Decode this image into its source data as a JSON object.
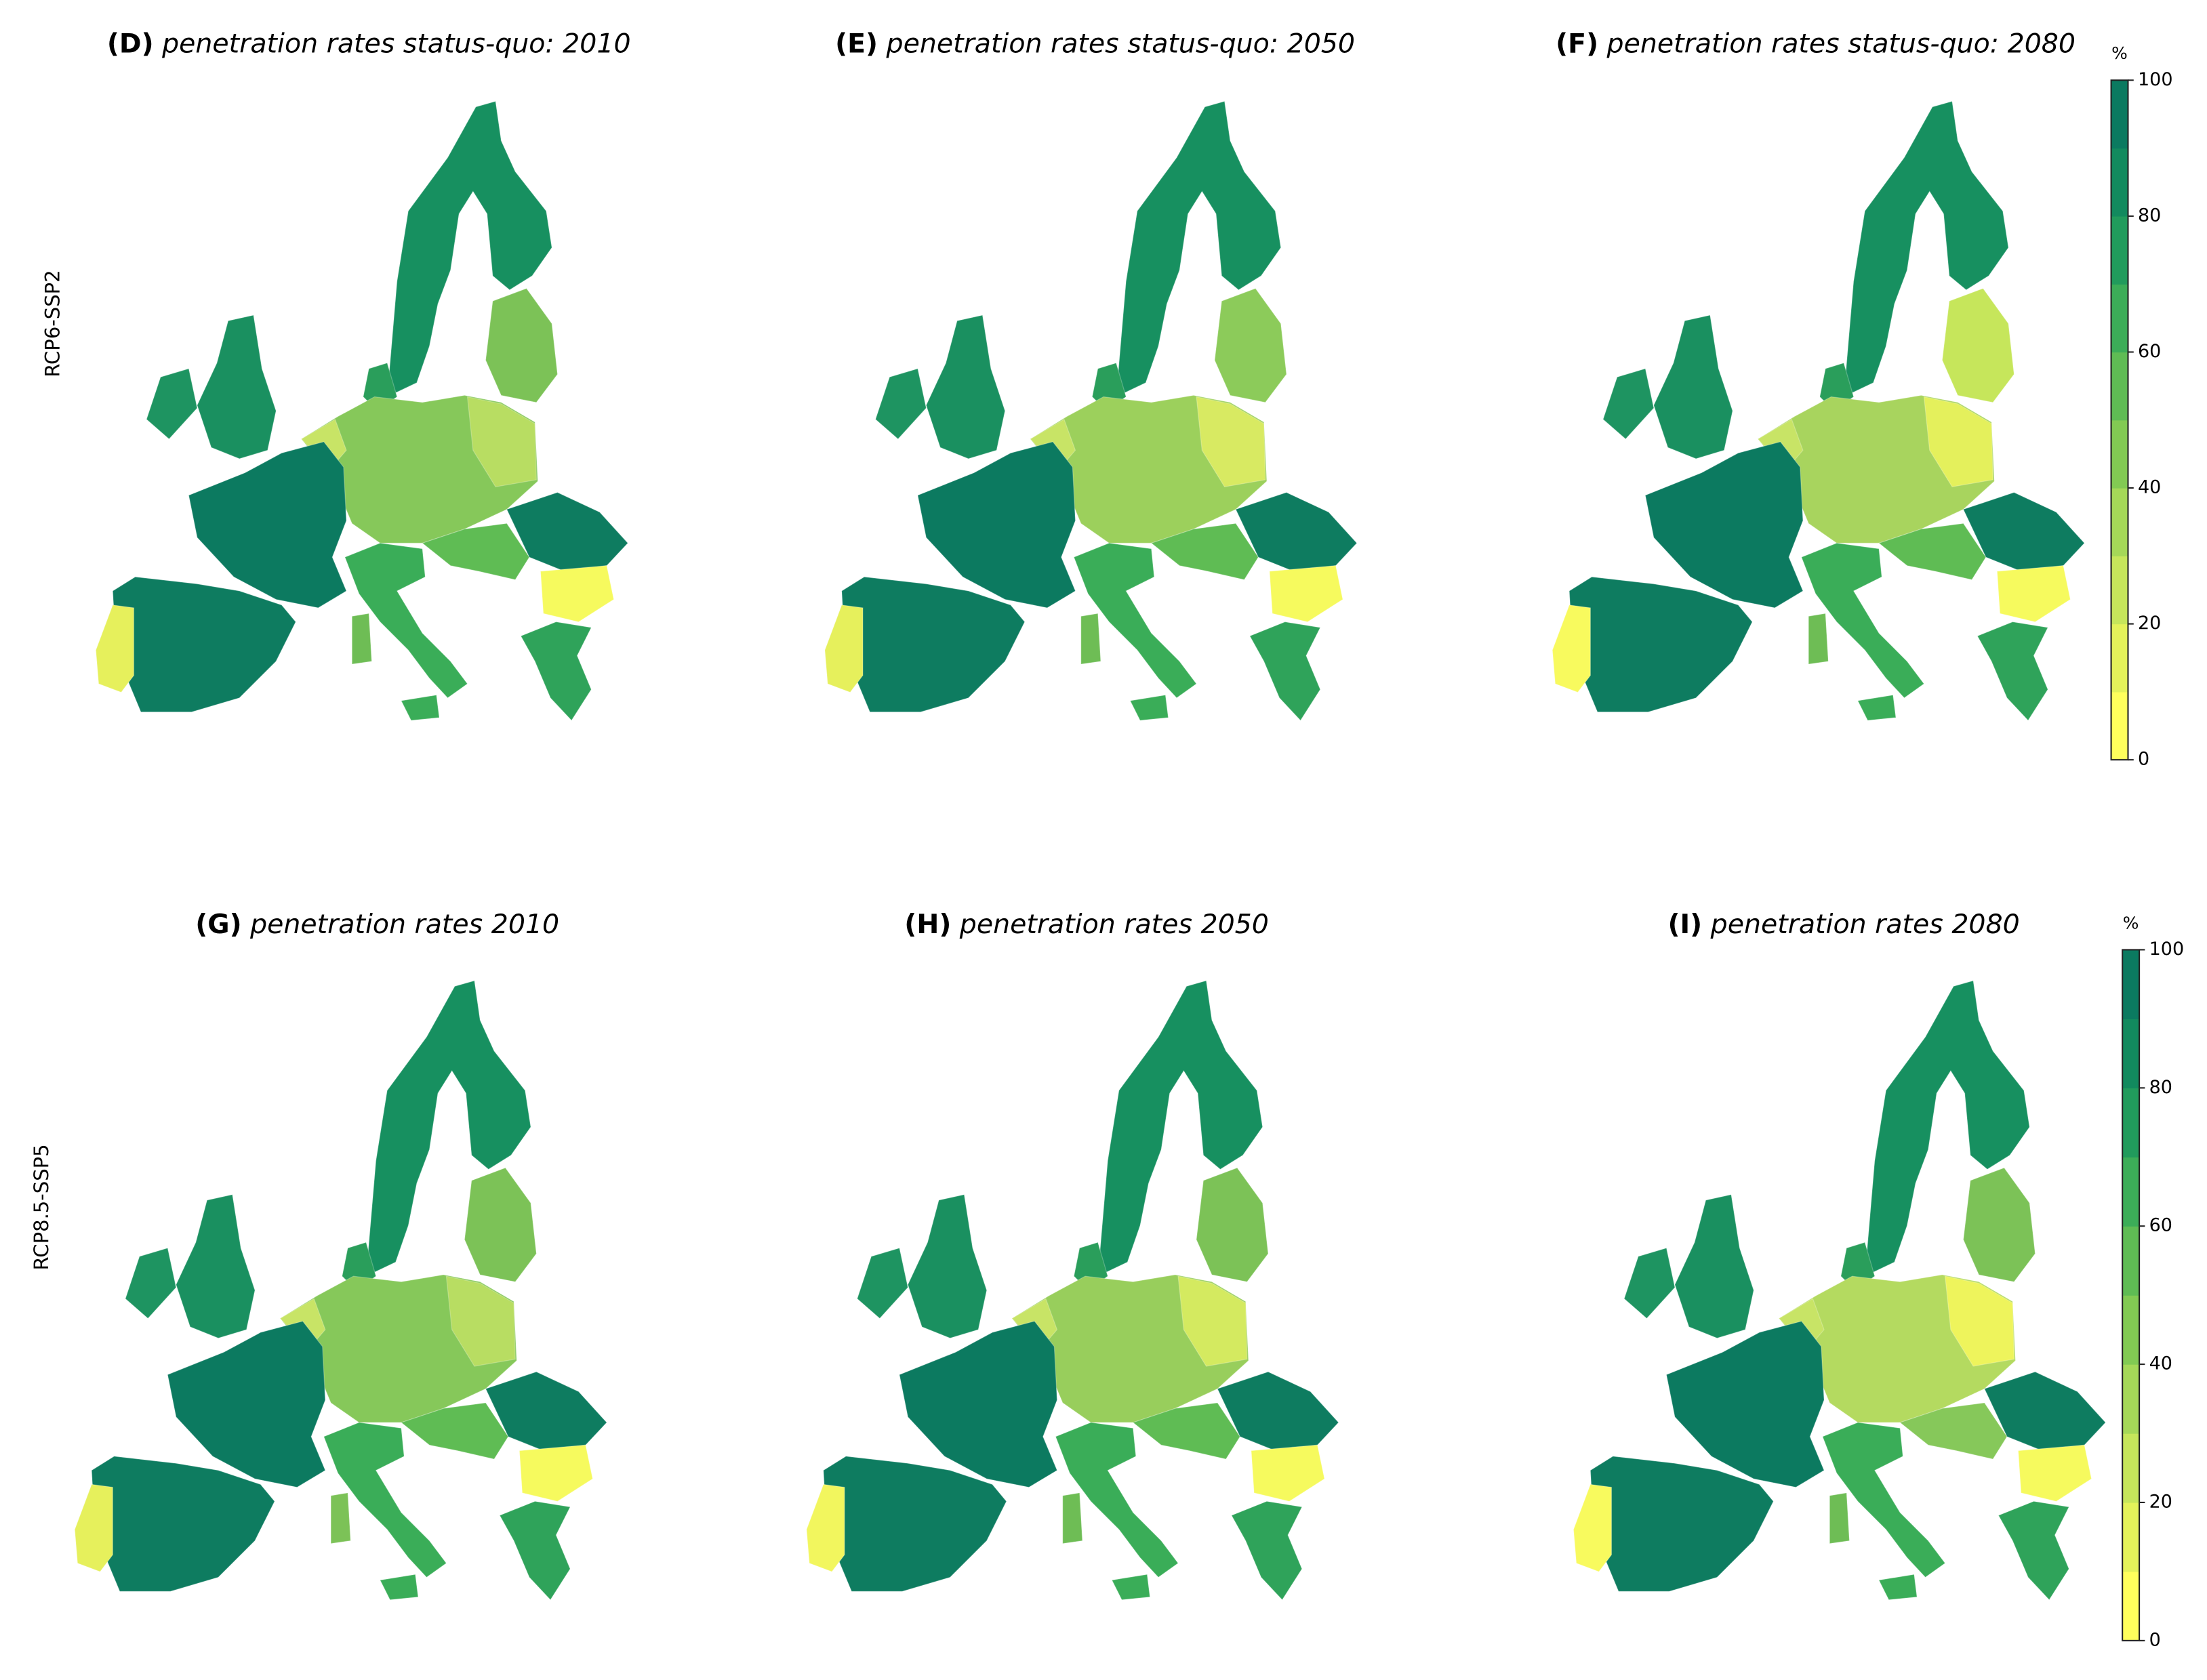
{
  "row_labels": [
    "RCP6-SSP2",
    "RCP8.5-SSP5"
  ],
  "panels": [
    {
      "label": "(D)",
      "title": "penetration rates status-quo: 2010"
    },
    {
      "label": "(E)",
      "title": "penetration rates status-quo: 2050"
    },
    {
      "label": "(F)",
      "title": "penetration rates status-quo: 2080"
    },
    {
      "label": "(G)",
      "title": "penetration rates 2010"
    },
    {
      "label": "(H)",
      "title": "penetration rates 2050"
    },
    {
      "label": "(I)",
      "title": "penetration rates 2080"
    }
  ],
  "colorbars": [
    {
      "unit": "%",
      "lim": [
        0,
        100
      ],
      "ticks": [
        0,
        20,
        40,
        60,
        80,
        100
      ],
      "colors": [
        "#ffff5c",
        "#e4f25a",
        "#c6e65b",
        "#a5d858",
        "#82ca53",
        "#5fbc54",
        "#3cad58",
        "#219b5c",
        "#128a5e",
        "#0b7a60"
      ]
    },
    {
      "unit": "%",
      "lim": [
        0,
        100
      ],
      "ticks": [
        0,
        20,
        40,
        60,
        80,
        100
      ],
      "colors": [
        "#ffff5c",
        "#e4f25a",
        "#c6e65b",
        "#a5d858",
        "#82ca53",
        "#5fbc54",
        "#3cad58",
        "#219b5c",
        "#128a5e",
        "#0b7a60"
      ]
    }
  ]
}
